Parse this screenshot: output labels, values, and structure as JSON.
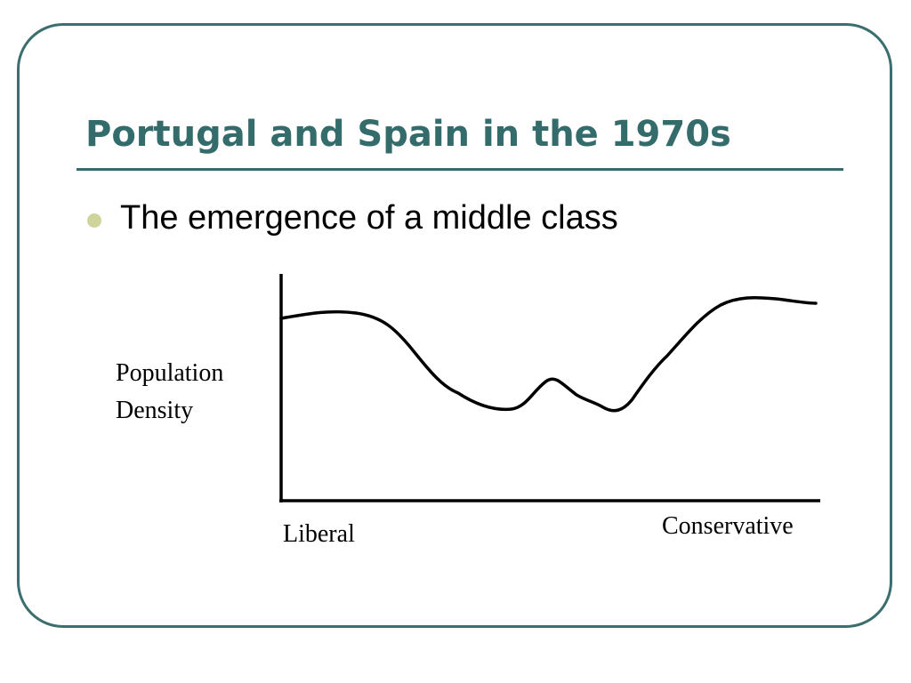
{
  "slide": {
    "title": "Portugal and Spain in the 1970s",
    "bullet": "The emergence of a middle class"
  },
  "colors": {
    "title": "#346b6b",
    "frame": "#3b6e6e",
    "bullet_dot": "#cfd49a"
  },
  "diagram": {
    "y_label_line1": "Population",
    "y_label_line2": "Density",
    "x_label_left": "Liberal",
    "x_label_right": "Conservative"
  }
}
